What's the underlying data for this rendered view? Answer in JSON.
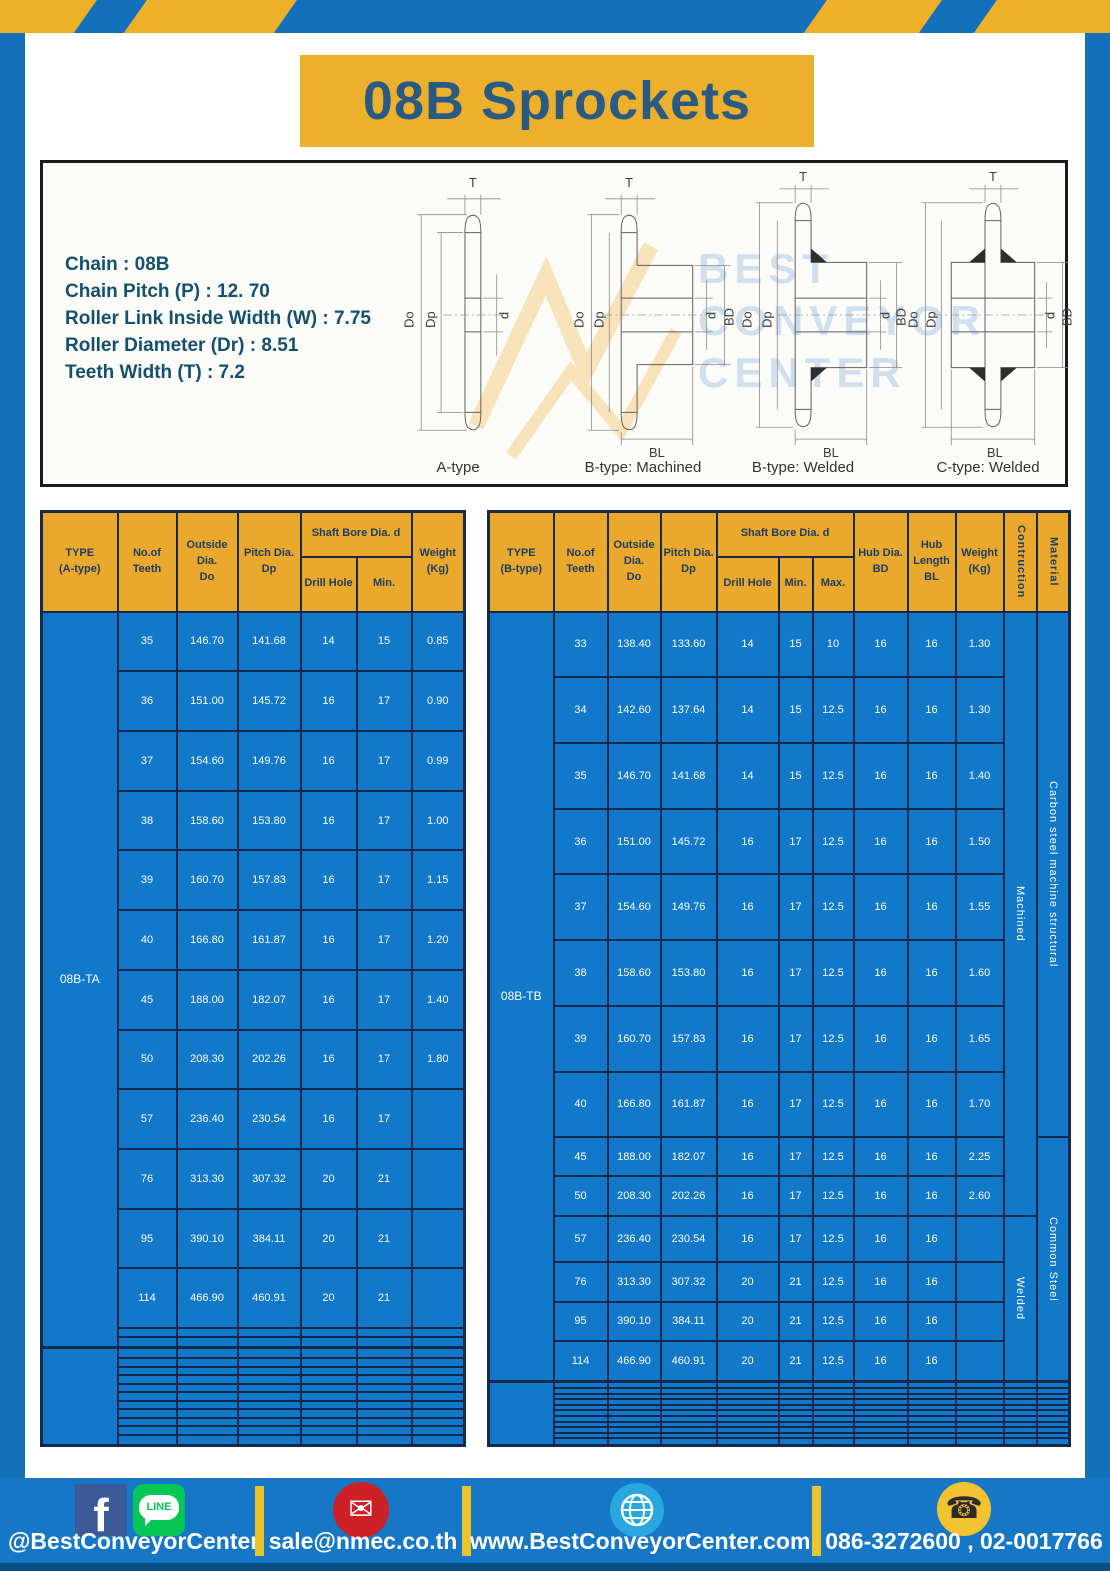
{
  "page": {
    "title": "08B Sprockets"
  },
  "colors": {
    "frame_blue": "#1470ba",
    "footer_blue": "#1577c5",
    "table_blue": "#1178ca",
    "header_yellow": "#eaa92c",
    "title_yellow": "#edb02d",
    "grid_navy": "#16294a",
    "title_text_navy": "#2a5a82",
    "stripe_yellow": "#eeb029"
  },
  "specs": {
    "lines": [
      "Chain : 08B",
      "Chain Pitch (P) : 12. 70",
      "Roller Link Inside Width (W) : 7.75",
      "Roller Diameter (Dr) : 8.51",
      "Teeth Width (T) : 7.2"
    ]
  },
  "watermark": {
    "lines": [
      "BEST",
      "CONVEYOR",
      "CENTER"
    ]
  },
  "diagrams": {
    "items": [
      {
        "label": "A-type"
      },
      {
        "label": "B-type: Machined"
      },
      {
        "label": "B-type: Welded"
      },
      {
        "label": "C-type: Welded"
      }
    ],
    "dims": {
      "T": "T",
      "Do": "Do",
      "Dp": "Dp",
      "d": "d",
      "BD": "BD",
      "BL": "BL"
    }
  },
  "left_table": {
    "header": {
      "type": "TYPE\n(A-type)",
      "teeth": "No.of\nTeeth",
      "outside": "Outside\nDia.\nDo",
      "pitch": "Pitch Dia.\nDp",
      "shaft_group": "Shaft Bore Dia. d",
      "drill": "Drill Hole",
      "min": "Min.",
      "weight": "Weight\n(Kg)"
    },
    "type_label": "08B-TA",
    "col_count": 6,
    "rows": [
      [
        "35",
        "146.70",
        "141.68",
        "14",
        "15",
        "0.85"
      ],
      [
        "36",
        "151.00",
        "145.72",
        "16",
        "17",
        "0.90"
      ],
      [
        "37",
        "154.60",
        "149.76",
        "16",
        "17",
        "0.99"
      ],
      [
        "38",
        "158.60",
        "153.80",
        "16",
        "17",
        "1.00"
      ],
      [
        "39",
        "160.70",
        "157.83",
        "16",
        "17",
        "1.15"
      ],
      [
        "40",
        "166.80",
        "161.87",
        "16",
        "17",
        "1.20"
      ],
      [
        "45",
        "188.00",
        "182.07",
        "16",
        "17",
        "1.40"
      ],
      [
        "50",
        "208.30",
        "202.26",
        "16",
        "17",
        "1.80"
      ],
      [
        "57",
        "236.40",
        "230.54",
        "16",
        "17",
        ""
      ],
      [
        "76",
        "313.30",
        "307.32",
        "20",
        "21",
        ""
      ],
      [
        "95",
        "390.10",
        "384.11",
        "20",
        "21",
        ""
      ],
      [
        "114",
        "466.90",
        "460.91",
        "20",
        "21",
        ""
      ]
    ],
    "empty_rows": 2,
    "bottom_empty_rows": 11
  },
  "right_table": {
    "header": {
      "type": "TYPE\n(B-type)",
      "teeth": "No.of\nTeeth",
      "outside": "Outside\nDia.\nDo",
      "pitch": "Pitch Dia.\nDp",
      "shaft_group": "Shaft Bore Dia. d",
      "drill": "Drill Hole",
      "min": "Min.",
      "max": "Max.",
      "hub_dia": "Hub Dia.\nBD",
      "hub_len": "Hub\nLength\nBL",
      "weight": "Weight\n(Kg)",
      "construction": "Contruction",
      "material": "Material"
    },
    "type_label": "08B-TB",
    "col_count": 9,
    "rows": [
      [
        "33",
        "138.40",
        "133.60",
        "14",
        "15",
        "10",
        "16",
        "16",
        "1.30"
      ],
      [
        "34",
        "142.60",
        "137.64",
        "14",
        "15",
        "12.5",
        "16",
        "16",
        "1.30"
      ],
      [
        "35",
        "146.70",
        "141.68",
        "14",
        "15",
        "12.5",
        "16",
        "16",
        "1.40"
      ],
      [
        "36",
        "151.00",
        "145.72",
        "16",
        "17",
        "12.5",
        "16",
        "16",
        "1.50"
      ],
      [
        "37",
        "154.60",
        "149.76",
        "16",
        "17",
        "12.5",
        "16",
        "16",
        "1.55"
      ],
      [
        "38",
        "158.60",
        "153.80",
        "16",
        "17",
        "12.5",
        "16",
        "16",
        "1.60"
      ],
      [
        "39",
        "160.70",
        "157.83",
        "16",
        "17",
        "12.5",
        "16",
        "16",
        "1.65"
      ],
      [
        "40",
        "166.80",
        "161.87",
        "16",
        "17",
        "12.5",
        "16",
        "16",
        "1.70"
      ],
      [
        "45",
        "188.00",
        "182.07",
        "16",
        "17",
        "12.5",
        "16",
        "16",
        "2.25"
      ],
      [
        "50",
        "208.30",
        "202.26",
        "16",
        "17",
        "12.5",
        "16",
        "16",
        "2.60"
      ],
      [
        "57",
        "236.40",
        "230.54",
        "16",
        "17",
        "12.5",
        "16",
        "16",
        ""
      ],
      [
        "76",
        "313.30",
        "307.32",
        "20",
        "21",
        "12.5",
        "16",
        "16",
        ""
      ],
      [
        "95",
        "390.10",
        "384.11",
        "20",
        "21",
        "12.5",
        "16",
        "16",
        ""
      ],
      [
        "114",
        "466.90",
        "460.91",
        "20",
        "21",
        "12.5",
        "16",
        "16",
        ""
      ]
    ],
    "construction_segments": [
      {
        "label": "Machined",
        "span": 10
      },
      {
        "label": "Welded",
        "span": 4
      }
    ],
    "material_segments": [
      {
        "label": "Carbon steel  machine  structural",
        "span": 8
      },
      {
        "label": "Common  Steel",
        "span": 6
      }
    ],
    "empty_rows": 0,
    "bottom_empty_rows": 11
  },
  "footer": {
    "social_handle": "@BestConveyorCenter",
    "email": "sale@nmec.co.th",
    "website": "www.BestConveyorCenter.com",
    "phone": "086-3272600 , 02-0017766",
    "line_icon_text": "LINE",
    "facebook_icon_letter": "f",
    "mail_glyph": "✉",
    "phone_glyph": "☎"
  }
}
